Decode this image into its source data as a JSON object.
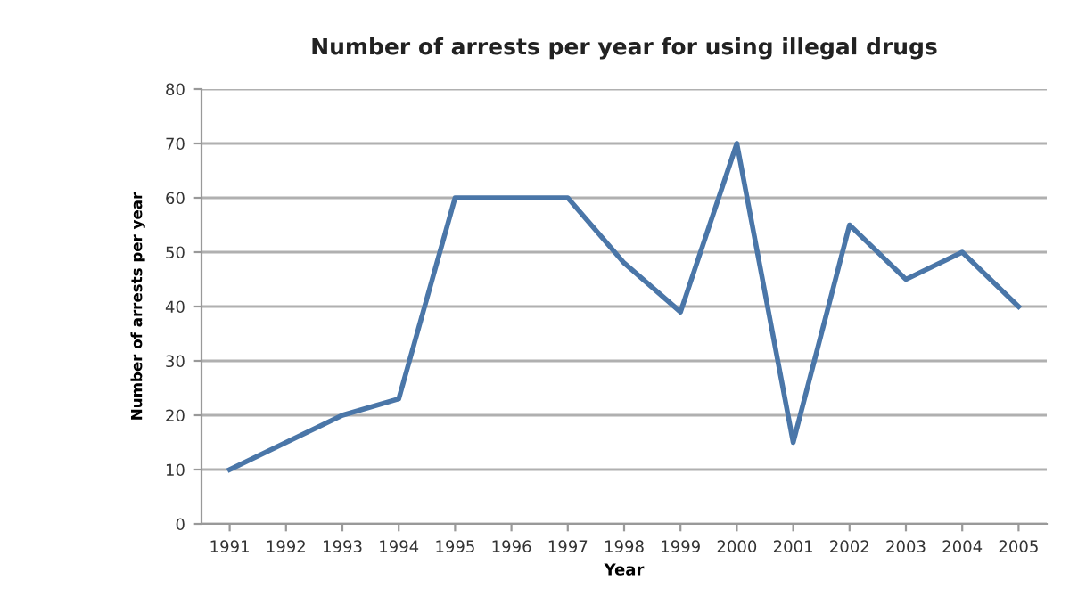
{
  "chart_data": {
    "type": "line",
    "title": "Number of arrests per year for using illegal drugs",
    "xlabel": "Year",
    "ylabel": "Number of arrests per year",
    "categories": [
      "1991",
      "1992",
      "1993",
      "1994",
      "1995",
      "1996",
      "1997",
      "1998",
      "1999",
      "2000",
      "2001",
      "2002",
      "2003",
      "2004",
      "2005"
    ],
    "series": [
      {
        "color": "#4a76a8",
        "values": [
          10,
          15,
          20,
          23,
          60,
          60,
          60,
          48,
          39,
          70,
          15,
          55,
          45,
          50,
          40
        ]
      }
    ],
    "ylim": [
      0,
      80
    ],
    "yticks": [
      0,
      10,
      20,
      30,
      40,
      50,
      60,
      70,
      80
    ],
    "grid": "y",
    "marker": "none",
    "line_style": "solid"
  }
}
